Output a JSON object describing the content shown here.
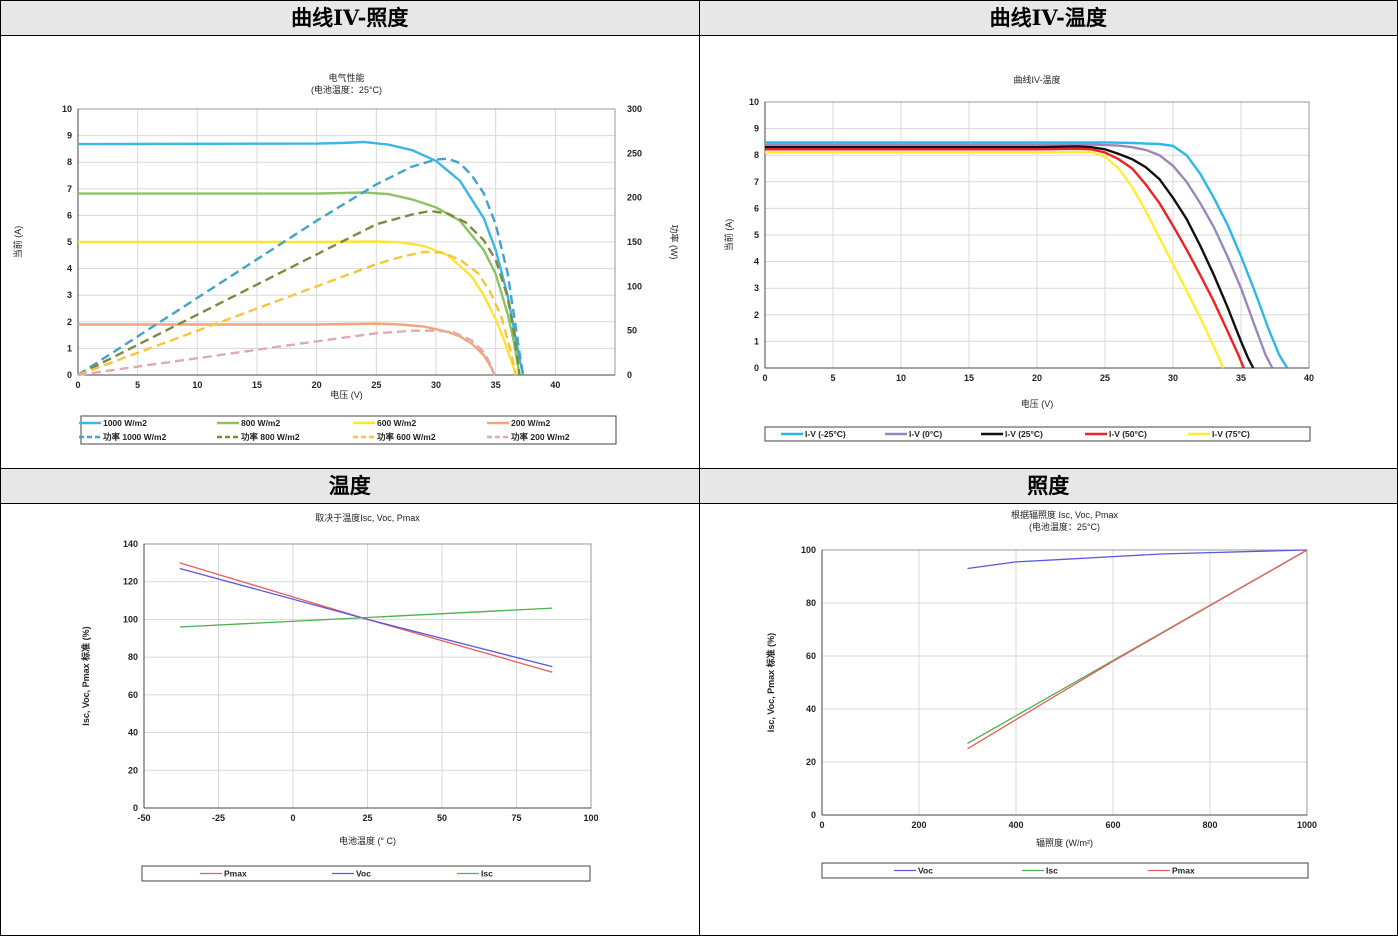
{
  "headers": {
    "top_left": "曲线IV-照度",
    "top_right": "曲线IV-温度",
    "bottom_left": "温度",
    "bottom_right": "照度"
  },
  "colors": {
    "c1000": "#3bb7e6",
    "c800": "#8cc460",
    "c600": "#ffe234",
    "c200": "#f4a478",
    "p1000": "#43a3c8",
    "p800": "#7d8a40",
    "p600": "#f5c63a",
    "p200": "#e0aab0",
    "cm25": "#2ab8e8",
    "c0": "#9b87bb",
    "c25": "#111111",
    "c50": "#ee2222",
    "c75": "#ffee33",
    "pmax": "#ef5b5b",
    "voc": "#5858e0",
    "isc": "#4caf50"
  },
  "chart_data": [
    {
      "type": "line",
      "title": "电气性能",
      "subtitle": "(电池温度：25°C)",
      "xlabel": "电压 (V)",
      "ylabel": "当前 (A)",
      "y2label": "功率 (W)",
      "xlim": [
        0,
        45
      ],
      "ylim": [
        0,
        10
      ],
      "y2lim": [
        0,
        300
      ],
      "xticks": [
        0,
        5,
        10,
        15,
        20,
        25,
        30,
        35,
        40
      ],
      "yticks": [
        0,
        1,
        2,
        3,
        4,
        5,
        6,
        7,
        8,
        9,
        10
      ],
      "y2ticks": [
        0,
        50,
        100,
        150,
        200,
        250,
        300
      ],
      "grid": true,
      "legend": "bottom",
      "series": [
        {
          "name": "1000 W/m2",
          "axis": "left",
          "color": "c1000",
          "dash": false,
          "x": [
            0,
            20,
            22,
            24,
            26,
            28,
            30,
            32,
            34,
            35,
            36,
            36.5,
            37,
            37.3
          ],
          "y": [
            8.68,
            8.7,
            8.72,
            8.76,
            8.66,
            8.45,
            8.05,
            7.3,
            5.9,
            4.7,
            3.0,
            1.8,
            0.6,
            0
          ]
        },
        {
          "name": "800 W/m2",
          "axis": "left",
          "color": "c800",
          "dash": false,
          "x": [
            0,
            20,
            24,
            26,
            28,
            30,
            32,
            34,
            35,
            36,
            36.5,
            37
          ],
          "y": [
            6.82,
            6.82,
            6.86,
            6.8,
            6.6,
            6.3,
            5.8,
            4.7,
            3.8,
            2.3,
            1.3,
            0
          ]
        },
        {
          "name": "600 W/m2",
          "axis": "left",
          "color": "c600",
          "dash": false,
          "x": [
            0,
            20,
            25,
            27,
            29,
            31,
            33,
            34,
            35,
            35.8,
            36.4,
            36.7
          ],
          "y": [
            5.0,
            5.0,
            5.02,
            4.99,
            4.85,
            4.5,
            3.7,
            3.0,
            2.1,
            1.2,
            0.4,
            0
          ]
        },
        {
          "name": "200 W/m2",
          "axis": "left",
          "color": "c200",
          "dash": false,
          "x": [
            0,
            20,
            25,
            27,
            29,
            31,
            32,
            33,
            34,
            34.6,
            34.9
          ],
          "y": [
            1.9,
            1.9,
            1.93,
            1.9,
            1.82,
            1.62,
            1.45,
            1.18,
            0.75,
            0.3,
            0
          ]
        },
        {
          "name": "功率 1000 W/m2",
          "axis": "right",
          "color": "p1000",
          "dash": true,
          "x": [
            0,
            10,
            20,
            25,
            28,
            30,
            31,
            32,
            33,
            34,
            35,
            36,
            36.5,
            37,
            37.3
          ],
          "y": [
            0,
            87,
            174,
            215,
            235,
            243,
            244,
            239,
            225,
            205,
            170,
            115,
            70,
            25,
            0
          ]
        },
        {
          "name": "功率 800 W/m2",
          "axis": "right",
          "color": "p800",
          "dash": true,
          "x": [
            0,
            10,
            20,
            25,
            28,
            29.5,
            31,
            32.5,
            34,
            35,
            36,
            36.5,
            37
          ],
          "y": [
            0,
            68,
            136,
            170,
            181,
            185,
            182,
            172,
            152,
            130,
            88,
            50,
            0
          ]
        },
        {
          "name": "功率 600 W/m2",
          "axis": "right",
          "color": "p600",
          "dash": true,
          "x": [
            0,
            10,
            20,
            25,
            27,
            29,
            30.5,
            32,
            33.5,
            34.5,
            35.5,
            36.2,
            36.7
          ],
          "y": [
            0,
            50,
            100,
            125,
            133,
            139,
            138,
            130,
            115,
            95,
            65,
            30,
            0
          ]
        },
        {
          "name": "功率 200 W/m2",
          "axis": "right",
          "color": "p200",
          "dash": true,
          "x": [
            0,
            10,
            20,
            25,
            28,
            30,
            31.5,
            33,
            34,
            34.6,
            34.9
          ],
          "y": [
            0,
            19,
            38,
            47,
            50,
            50,
            48,
            39,
            26,
            11,
            0
          ]
        }
      ]
    },
    {
      "type": "line",
      "title": "曲线IV-温度",
      "xlabel": "电压 (V)",
      "ylabel": "当前 (A)",
      "xlim": [
        0,
        40
      ],
      "ylim": [
        0,
        10
      ],
      "xticks": [
        0,
        5,
        10,
        15,
        20,
        25,
        30,
        35,
        40
      ],
      "yticks": [
        0,
        1,
        2,
        3,
        4,
        5,
        6,
        7,
        8,
        9,
        10
      ],
      "grid": true,
      "legend": "bottom",
      "series": [
        {
          "name": "I-V (-25°C)",
          "color": "cm25",
          "x": [
            0,
            20,
            25,
            27,
            29,
            30,
            31,
            32,
            33,
            34,
            35,
            36,
            37,
            37.8,
            38.4
          ],
          "y": [
            8.48,
            8.48,
            8.48,
            8.46,
            8.42,
            8.35,
            8.0,
            7.3,
            6.4,
            5.4,
            4.2,
            2.9,
            1.5,
            0.5,
            0
          ]
        },
        {
          "name": "I-V (0°C)",
          "color": "c0",
          "x": [
            0,
            20,
            24,
            26,
            27,
            28,
            29,
            30,
            31,
            32,
            33,
            34,
            35,
            36,
            36.8,
            37.3
          ],
          "y": [
            8.39,
            8.39,
            8.4,
            8.36,
            8.3,
            8.2,
            8.0,
            7.6,
            7.0,
            6.2,
            5.3,
            4.2,
            3.0,
            1.6,
            0.5,
            0
          ]
        },
        {
          "name": "I-V (25°C)",
          "color": "c25",
          "x": [
            0,
            20,
            23,
            24,
            25,
            26,
            27,
            28,
            29,
            30,
            31,
            32,
            33,
            34,
            35,
            35.5,
            35.9
          ],
          "y": [
            8.3,
            8.3,
            8.33,
            8.3,
            8.22,
            8.05,
            7.85,
            7.55,
            7.1,
            6.4,
            5.6,
            4.6,
            3.5,
            2.3,
            1.0,
            0.4,
            0
          ]
        },
        {
          "name": "I-V (50°C)",
          "color": "c50",
          "x": [
            0,
            20,
            23,
            24,
            25,
            26,
            27,
            28,
            29,
            30,
            31,
            32,
            33,
            34,
            34.8,
            35.2
          ],
          "y": [
            8.22,
            8.22,
            8.24,
            8.22,
            8.1,
            7.85,
            7.5,
            6.9,
            6.2,
            5.35,
            4.45,
            3.5,
            2.5,
            1.4,
            0.5,
            0
          ]
        },
        {
          "name": "I-V (75°C)",
          "color": "c75",
          "x": [
            0,
            20,
            24,
            25,
            26,
            27,
            28,
            29,
            30,
            31,
            32,
            33,
            33.7
          ],
          "y": [
            8.1,
            8.1,
            8.12,
            7.95,
            7.5,
            6.8,
            5.9,
            4.9,
            3.9,
            2.9,
            1.9,
            0.8,
            0
          ]
        }
      ]
    },
    {
      "type": "line",
      "title": "取决于温度Isc, Voc, Pmax",
      "xlabel": "电池温度 (° C)",
      "ylabel": "Isc, Voc, Pmax 标准 (%)",
      "xlim": [
        -50,
        100
      ],
      "ylim": [
        0,
        140
      ],
      "xticks": [
        -50,
        -25,
        0,
        25,
        50,
        75,
        100
      ],
      "yticks": [
        0,
        20,
        40,
        60,
        80,
        100,
        120,
        140
      ],
      "grid": true,
      "legend": "bottom",
      "series": [
        {
          "name": "Pmax",
          "color": "pmax",
          "x": [
            -38,
            25,
            87
          ],
          "y": [
            130,
            100,
            72
          ]
        },
        {
          "name": "Voc",
          "color": "voc",
          "x": [
            -38,
            25,
            87
          ],
          "y": [
            127,
            100,
            75
          ]
        },
        {
          "name": "Isc",
          "color": "isc",
          "x": [
            -38,
            25,
            87
          ],
          "y": [
            96,
            101,
            106
          ]
        }
      ]
    },
    {
      "type": "line",
      "title": "根据辐照度 Isc, Voc, Pmax",
      "subtitle": "(电池温度：25°C)",
      "xlabel": "辐照度 (W/m²)",
      "ylabel": "Isc, Voc, Pmax 标准 (%)",
      "xlim": [
        0,
        1000
      ],
      "ylim": [
        0,
        100
      ],
      "xticks": [
        0,
        200,
        400,
        600,
        800,
        1000
      ],
      "yticks": [
        0,
        20,
        40,
        60,
        80,
        100
      ],
      "grid": true,
      "legend": "bottom",
      "series": [
        {
          "name": "Voc",
          "color": "voc",
          "x": [
            300,
            400,
            500,
            600,
            700,
            800,
            900,
            1000
          ],
          "y": [
            93,
            95.5,
            96.5,
            97.5,
            98.5,
            99,
            99.5,
            100
          ]
        },
        {
          "name": "Isc",
          "color": "isc",
          "x": [
            300,
            1000
          ],
          "y": [
            27,
            100
          ]
        },
        {
          "name": "Pmax",
          "color": "pmax",
          "x": [
            300,
            400,
            600,
            800,
            1000
          ],
          "y": [
            25,
            36,
            58,
            79,
            100
          ]
        }
      ]
    }
  ]
}
